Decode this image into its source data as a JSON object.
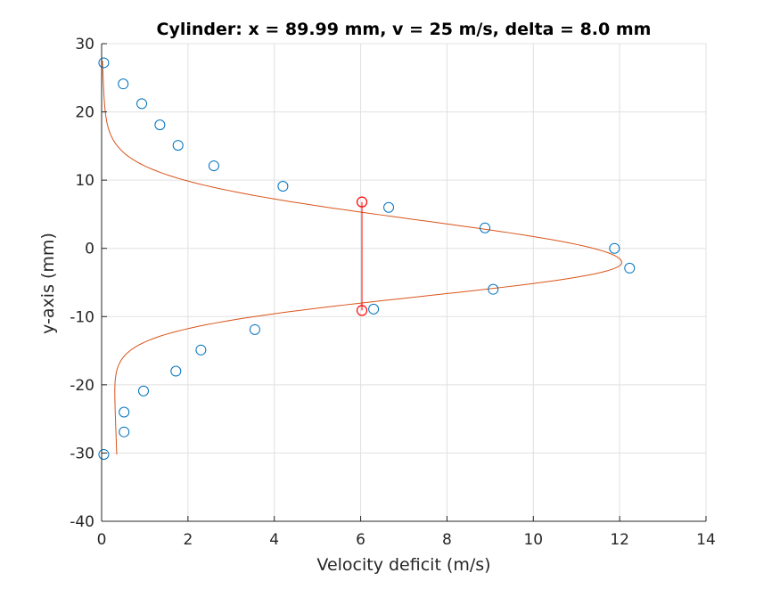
{
  "chart_data": {
    "type": "scatter",
    "title": "Cylinder: x = 89.99 mm, v = 25 m/s, delta = 8.0 mm",
    "xlabel": "Velocity deficit (m/s)",
    "ylabel": "y-axis (mm)",
    "xlim": [
      0,
      14
    ],
    "ylim": [
      -40,
      30
    ],
    "xticks": [
      0,
      2,
      4,
      6,
      8,
      10,
      12,
      14
    ],
    "yticks": [
      -40,
      -30,
      -20,
      -10,
      0,
      10,
      20,
      30
    ],
    "grid": true,
    "colors": {
      "measured": "#0072bd",
      "fit": "#d95319",
      "width": "#ff0000"
    },
    "series": [
      {
        "kind": "markers",
        "x": [
          0.05,
          0.5,
          0.93,
          1.35,
          1.77,
          2.6,
          4.2,
          6.65,
          8.88,
          11.88,
          12.23,
          9.07,
          6.3,
          3.55,
          2.3,
          1.72,
          0.97,
          0.52,
          0.52,
          0.05
        ],
        "y": [
          27.2,
          24.1,
          21.2,
          18.1,
          15.1,
          12.1,
          9.1,
          6.0,
          3.0,
          0.0,
          -2.9,
          -6.0,
          -8.9,
          -11.9,
          -14.9,
          -18.0,
          -20.9,
          -24.0,
          -26.9,
          -30.2
        ]
      },
      {
        "kind": "fit",
        "peak": 12.05,
        "center": -2.1,
        "half_width_upper": 8.8,
        "half_width_lower": 7.0,
        "y_range": [
          -30.2,
          27.5
        ],
        "offset_start": 0.02,
        "offset_end": 0.35
      },
      {
        "kind": "width",
        "x": [
          6.03,
          6.03
        ],
        "y": [
          6.8,
          -9.1
        ]
      }
    ]
  }
}
